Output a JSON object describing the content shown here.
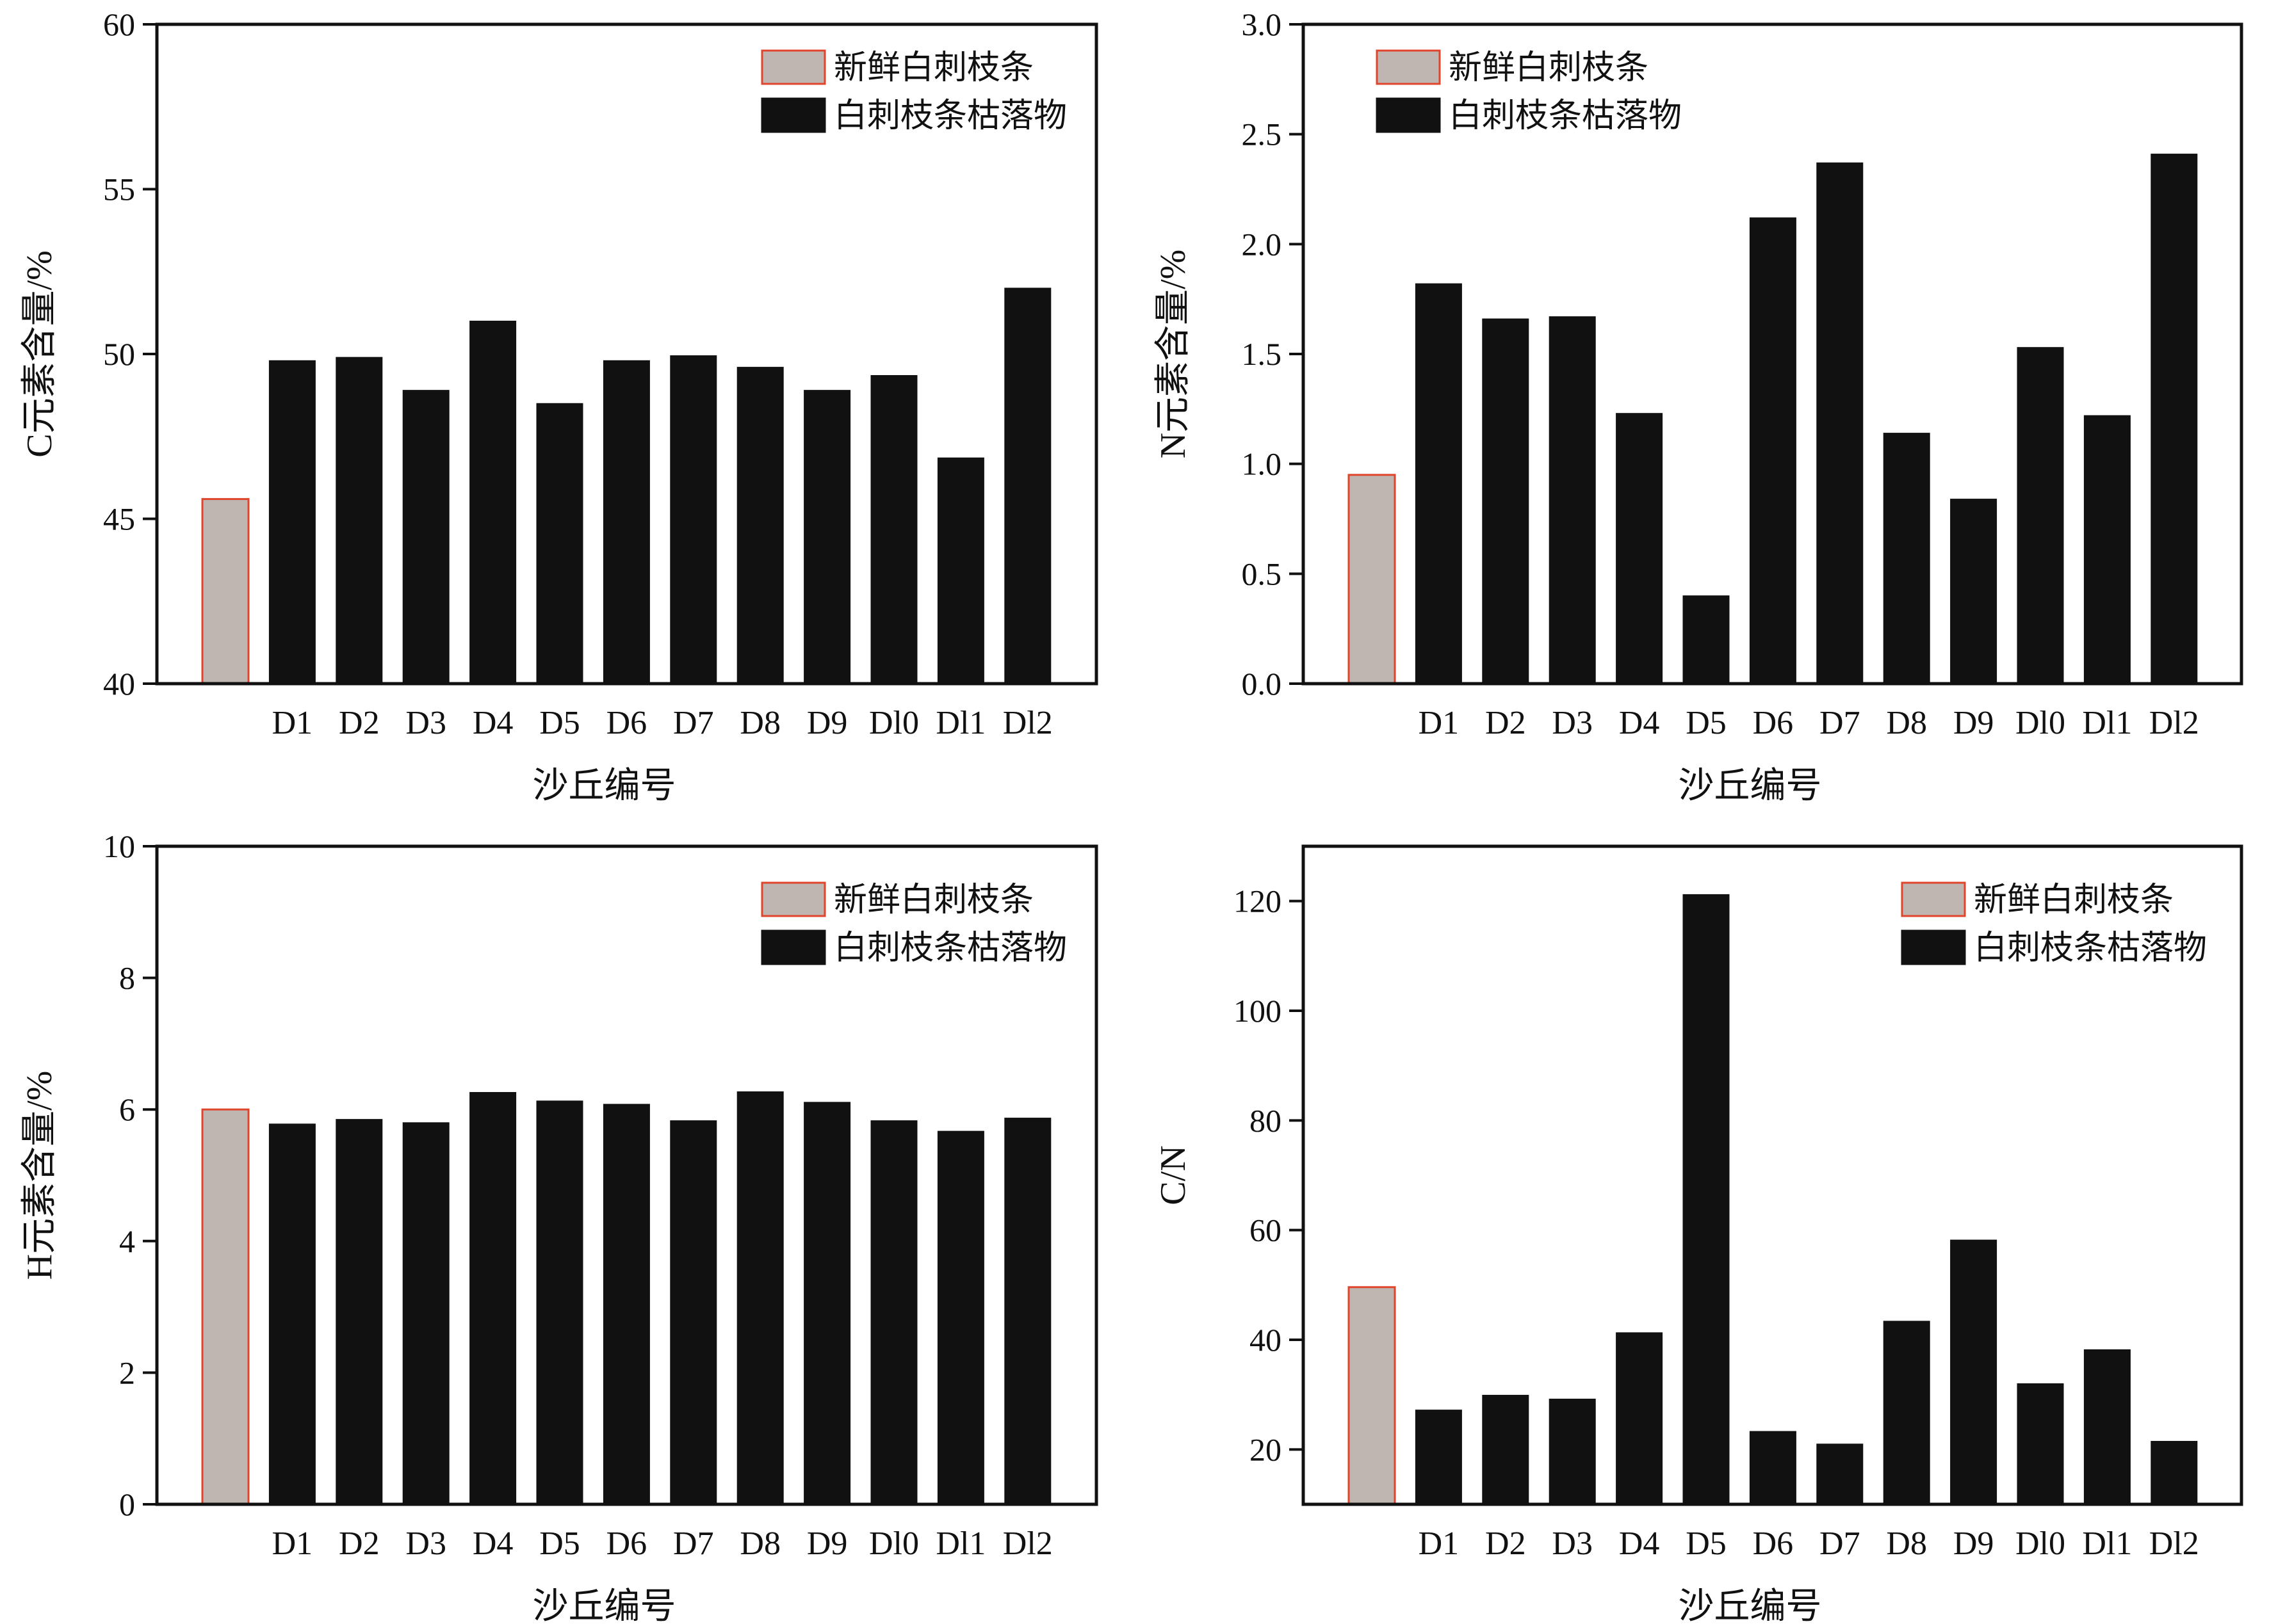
{
  "colors": {
    "fresh_fill": "#bfb5b1",
    "fresh_stroke": "#e0442b",
    "litter_fill": "#111111",
    "axis": "#111111"
  },
  "legend": {
    "fresh": "新鲜白刺枝条",
    "litter": "白刺枝条枯落物"
  },
  "chart_data": [
    {
      "type": "bar",
      "title": "",
      "xlabel": "沙丘编号",
      "ylabel": "C元素含量/%",
      "ylim": [
        40,
        60
      ],
      "yticks": [
        40,
        45,
        50,
        55,
        60
      ],
      "ytick_labels": [
        "40",
        "45",
        "50",
        "55",
        "60"
      ],
      "legend_position": "top-right",
      "categories": [
        "",
        "D1",
        "D2",
        "D3",
        "D4",
        "D5",
        "D6",
        "D7",
        "D8",
        "D9",
        "Dl0",
        "Dl1",
        "Dl2"
      ],
      "series": [
        {
          "name": "新鲜白刺枝条",
          "values": [
            45.6,
            null,
            null,
            null,
            null,
            null,
            null,
            null,
            null,
            null,
            null,
            null,
            null
          ]
        },
        {
          "name": "白刺枝条枯落物",
          "values": [
            null,
            49.8,
            49.9,
            48.9,
            51.0,
            48.5,
            49.8,
            49.95,
            49.6,
            48.9,
            49.35,
            46.85,
            52.0
          ]
        }
      ]
    },
    {
      "type": "bar",
      "title": "",
      "xlabel": "沙丘编号",
      "ylabel": "N元素含量/%",
      "ylim": [
        0,
        3
      ],
      "yticks": [
        0,
        0.5,
        1,
        1.5,
        2,
        2.5,
        3
      ],
      "ytick_labels": [
        "0.0",
        "0.5",
        "1.0",
        "1.5",
        "2.0",
        "2.5",
        "3.0"
      ],
      "legend_position": "top-left",
      "categories": [
        "",
        "D1",
        "D2",
        "D3",
        "D4",
        "D5",
        "D6",
        "D7",
        "D8",
        "D9",
        "Dl0",
        "Dl1",
        "Dl2"
      ],
      "series": [
        {
          "name": "新鲜白刺枝条",
          "values": [
            0.95,
            null,
            null,
            null,
            null,
            null,
            null,
            null,
            null,
            null,
            null,
            null,
            null
          ]
        },
        {
          "name": "白刺枝条枯落物",
          "values": [
            null,
            1.82,
            1.66,
            1.67,
            1.23,
            0.4,
            2.12,
            2.37,
            1.14,
            0.84,
            1.53,
            1.22,
            2.41
          ]
        }
      ]
    },
    {
      "type": "bar",
      "title": "",
      "xlabel": "沙丘编号",
      "ylabel": "H元素含量/%",
      "ylim": [
        0,
        10
      ],
      "yticks": [
        0,
        2,
        4,
        6,
        8,
        10
      ],
      "ytick_labels": [
        "0",
        "2",
        "4",
        "6",
        "8",
        "10"
      ],
      "legend_position": "top-right",
      "categories": [
        "",
        "D1",
        "D2",
        "D3",
        "D4",
        "D5",
        "D6",
        "D7",
        "D8",
        "D9",
        "Dl0",
        "Dl1",
        "Dl2"
      ],
      "series": [
        {
          "name": "新鲜白刺枝条",
          "values": [
            6.0,
            null,
            null,
            null,
            null,
            null,
            null,
            null,
            null,
            null,
            null,
            null,
            null
          ]
        },
        {
          "name": "白刺枝条枯落物",
          "values": [
            null,
            5.78,
            5.85,
            5.8,
            6.26,
            6.13,
            6.08,
            5.83,
            6.27,
            6.11,
            5.83,
            5.67,
            5.87
          ]
        }
      ]
    },
    {
      "type": "bar",
      "title": "",
      "xlabel": "沙丘编号",
      "ylabel": "C/N",
      "ylim": [
        10,
        130
      ],
      "yticks": [
        20,
        40,
        60,
        80,
        100,
        120
      ],
      "ytick_labels": [
        "20",
        "40",
        "60",
        "80",
        "100",
        "120"
      ],
      "legend_position": "top-right",
      "categories": [
        "",
        "D1",
        "D2",
        "D3",
        "D4",
        "D5",
        "D6",
        "D7",
        "D8",
        "D9",
        "Dl0",
        "Dl1",
        "Dl2"
      ],
      "series": [
        {
          "name": "新鲜白刺枝条",
          "values": [
            49.6,
            null,
            null,
            null,
            null,
            null,
            null,
            null,
            null,
            null,
            null,
            null,
            null
          ]
        },
        {
          "name": "白刺枝条枯落物",
          "values": [
            null,
            27.2,
            29.9,
            29.2,
            41.3,
            121.2,
            23.3,
            21.0,
            43.4,
            58.2,
            32.0,
            38.2,
            21.5
          ]
        }
      ]
    }
  ]
}
